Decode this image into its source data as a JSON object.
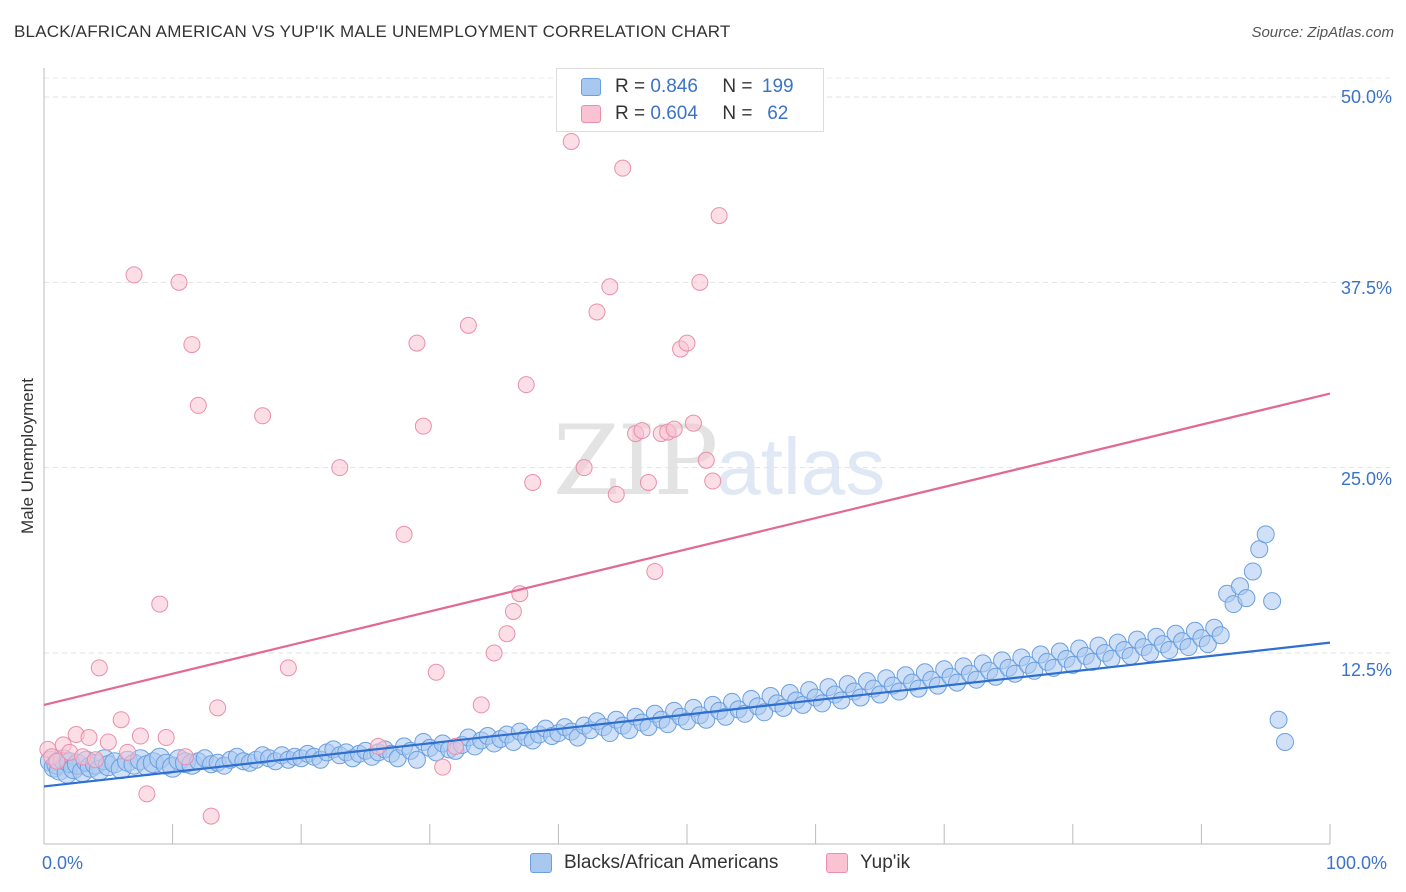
{
  "title": "BLACK/AFRICAN AMERICAN VS YUP'IK MALE UNEMPLOYMENT CORRELATION CHART",
  "source": "Source: ZipAtlas.com",
  "watermark": {
    "zip": "ZIP",
    "atlas": "atlas"
  },
  "legend": [
    {
      "r_label": "R =",
      "r_value": "0.846",
      "n_label": "N =",
      "n_value": "199",
      "color": "#a9c8f0",
      "border": "#6a9fe0"
    },
    {
      "r_label": "R =",
      "r_value": "0.604",
      "n_label": "N =",
      "n_value": "62",
      "color": "#f9c3d3",
      "border": "#ea8fab"
    }
  ],
  "chart_data": {
    "type": "scatter",
    "title": "BLACK/AFRICAN AMERICAN VS YUP'IK MALE UNEMPLOYMENT CORRELATION CHART",
    "xlabel": "",
    "ylabel": "Male Unemployment",
    "xlim": [
      0,
      100
    ],
    "ylim": [
      0,
      52
    ],
    "x_tick_labels": [
      "0.0%",
      "100.0%"
    ],
    "y_ticks": [
      12.5,
      25.0,
      37.5,
      50.0
    ],
    "y_tick_labels": [
      "12.5%",
      "25.0%",
      "37.5%",
      "50.0%"
    ],
    "grid": true,
    "series": [
      {
        "name": "Blacks/African Americans",
        "color": "#a9c8f0",
        "edge": "#6a9fe0",
        "line_color": "#2f6fd0",
        "trend": [
          [
            0,
            3.5
          ],
          [
            100,
            13.2
          ]
        ],
        "points": [
          [
            0.5,
            5.2
          ],
          [
            0.8,
            4.8
          ],
          [
            1,
            5.0
          ],
          [
            1.2,
            4.6
          ],
          [
            1.5,
            5.3
          ],
          [
            1.8,
            4.4
          ],
          [
            2,
            5.1
          ],
          [
            2.3,
            4.7
          ],
          [
            2.6,
            5.0
          ],
          [
            3,
            4.5
          ],
          [
            3.3,
            5.2
          ],
          [
            3.6,
            4.8
          ],
          [
            4,
            5.0
          ],
          [
            4.3,
            4.6
          ],
          [
            4.7,
            5.3
          ],
          [
            5,
            4.9
          ],
          [
            5.5,
            5.1
          ],
          [
            6,
            4.7
          ],
          [
            6.5,
            5.2
          ],
          [
            7,
            5.0
          ],
          [
            7.5,
            5.3
          ],
          [
            8,
            4.9
          ],
          [
            8.5,
            5.1
          ],
          [
            9,
            5.4
          ],
          [
            9.5,
            5.0
          ],
          [
            10,
            4.8
          ],
          [
            10.5,
            5.3
          ],
          [
            11,
            5.1
          ],
          [
            11.5,
            5.0
          ],
          [
            12,
            5.2
          ],
          [
            12.5,
            5.4
          ],
          [
            13,
            5.0
          ],
          [
            13.5,
            5.1
          ],
          [
            14,
            4.9
          ],
          [
            14.5,
            5.3
          ],
          [
            15,
            5.5
          ],
          [
            15.5,
            5.2
          ],
          [
            16,
            5.1
          ],
          [
            16.5,
            5.3
          ],
          [
            17,
            5.6
          ],
          [
            17.5,
            5.4
          ],
          [
            18,
            5.2
          ],
          [
            18.5,
            5.6
          ],
          [
            19,
            5.3
          ],
          [
            19.5,
            5.5
          ],
          [
            20,
            5.4
          ],
          [
            20.5,
            5.7
          ],
          [
            21,
            5.5
          ],
          [
            21.5,
            5.3
          ],
          [
            22,
            5.8
          ],
          [
            22.5,
            6.0
          ],
          [
            23,
            5.6
          ],
          [
            23.5,
            5.8
          ],
          [
            24,
            5.4
          ],
          [
            24.5,
            5.7
          ],
          [
            25,
            5.9
          ],
          [
            25.5,
            5.5
          ],
          [
            26,
            5.8
          ],
          [
            26.5,
            6.0
          ],
          [
            27,
            5.7
          ],
          [
            27.5,
            5.4
          ],
          [
            28,
            6.2
          ],
          [
            28.5,
            5.9
          ],
          [
            29,
            5.3
          ],
          [
            29.5,
            6.5
          ],
          [
            30,
            6.1
          ],
          [
            30.5,
            5.8
          ],
          [
            31,
            6.4
          ],
          [
            31.5,
            6.0
          ],
          [
            32,
            5.9
          ],
          [
            32.5,
            6.3
          ],
          [
            33,
            6.8
          ],
          [
            33.5,
            6.2
          ],
          [
            34,
            6.6
          ],
          [
            34.5,
            6.9
          ],
          [
            35,
            6.4
          ],
          [
            35.5,
            6.7
          ],
          [
            36,
            7.0
          ],
          [
            36.5,
            6.5
          ],
          [
            37,
            7.2
          ],
          [
            37.5,
            6.8
          ],
          [
            38,
            6.6
          ],
          [
            38.5,
            7.0
          ],
          [
            39,
            7.4
          ],
          [
            39.5,
            6.9
          ],
          [
            40,
            7.1
          ],
          [
            40.5,
            7.5
          ],
          [
            41,
            7.2
          ],
          [
            41.5,
            6.8
          ],
          [
            42,
            7.6
          ],
          [
            42.5,
            7.3
          ],
          [
            43,
            7.9
          ],
          [
            43.5,
            7.5
          ],
          [
            44,
            7.1
          ],
          [
            44.5,
            8.0
          ],
          [
            45,
            7.6
          ],
          [
            45.5,
            7.3
          ],
          [
            46,
            8.2
          ],
          [
            46.5,
            7.8
          ],
          [
            47,
            7.5
          ],
          [
            47.5,
            8.4
          ],
          [
            48,
            8.0
          ],
          [
            48.5,
            7.7
          ],
          [
            49,
            8.6
          ],
          [
            49.5,
            8.2
          ],
          [
            50,
            7.9
          ],
          [
            50.5,
            8.8
          ],
          [
            51,
            8.3
          ],
          [
            51.5,
            8.0
          ],
          [
            52,
            9.0
          ],
          [
            52.5,
            8.6
          ],
          [
            53,
            8.2
          ],
          [
            53.5,
            9.2
          ],
          [
            54,
            8.7
          ],
          [
            54.5,
            8.4
          ],
          [
            55,
            9.4
          ],
          [
            55.5,
            8.9
          ],
          [
            56,
            8.5
          ],
          [
            56.5,
            9.6
          ],
          [
            57,
            9.1
          ],
          [
            57.5,
            8.8
          ],
          [
            58,
            9.8
          ],
          [
            58.5,
            9.3
          ],
          [
            59,
            9.0
          ],
          [
            59.5,
            10.0
          ],
          [
            60,
            9.5
          ],
          [
            60.5,
            9.1
          ],
          [
            61,
            10.2
          ],
          [
            61.5,
            9.7
          ],
          [
            62,
            9.3
          ],
          [
            62.5,
            10.4
          ],
          [
            63,
            9.9
          ],
          [
            63.5,
            9.5
          ],
          [
            64,
            10.6
          ],
          [
            64.5,
            10.1
          ],
          [
            65,
            9.7
          ],
          [
            65.5,
            10.8
          ],
          [
            66,
            10.3
          ],
          [
            66.5,
            9.9
          ],
          [
            67,
            11.0
          ],
          [
            67.5,
            10.5
          ],
          [
            68,
            10.1
          ],
          [
            68.5,
            11.2
          ],
          [
            69,
            10.7
          ],
          [
            69.5,
            10.3
          ],
          [
            70,
            11.4
          ],
          [
            70.5,
            10.9
          ],
          [
            71,
            10.5
          ],
          [
            71.5,
            11.6
          ],
          [
            72,
            11.1
          ],
          [
            72.5,
            10.7
          ],
          [
            73,
            11.8
          ],
          [
            73.5,
            11.3
          ],
          [
            74,
            10.9
          ],
          [
            74.5,
            12.0
          ],
          [
            75,
            11.5
          ],
          [
            75.5,
            11.1
          ],
          [
            76,
            12.2
          ],
          [
            76.5,
            11.7
          ],
          [
            77,
            11.3
          ],
          [
            77.5,
            12.4
          ],
          [
            78,
            11.9
          ],
          [
            78.5,
            11.5
          ],
          [
            79,
            12.6
          ],
          [
            79.5,
            12.1
          ],
          [
            80,
            11.7
          ],
          [
            80.5,
            12.8
          ],
          [
            81,
            12.3
          ],
          [
            81.5,
            11.9
          ],
          [
            82,
            13.0
          ],
          [
            82.5,
            12.5
          ],
          [
            83,
            12.1
          ],
          [
            83.5,
            13.2
          ],
          [
            84,
            12.7
          ],
          [
            84.5,
            12.3
          ],
          [
            85,
            13.4
          ],
          [
            85.5,
            12.9
          ],
          [
            86,
            12.5
          ],
          [
            86.5,
            13.6
          ],
          [
            87,
            13.1
          ],
          [
            87.5,
            12.7
          ],
          [
            88,
            13.8
          ],
          [
            88.5,
            13.3
          ],
          [
            89,
            12.9
          ],
          [
            89.5,
            14.0
          ],
          [
            90,
            13.5
          ],
          [
            90.5,
            13.1
          ],
          [
            91,
            14.2
          ],
          [
            91.5,
            13.7
          ],
          [
            92,
            16.5
          ],
          [
            92.5,
            15.8
          ],
          [
            93,
            17.0
          ],
          [
            93.5,
            16.2
          ],
          [
            94,
            18.0
          ],
          [
            94.5,
            19.5
          ],
          [
            95,
            20.5
          ],
          [
            95.5,
            16.0
          ],
          [
            96,
            8.0
          ],
          [
            96.5,
            6.5
          ]
        ]
      },
      {
        "name": "Yup'ik",
        "color": "#f9c3d3",
        "edge": "#ea8fab",
        "line_color": "#e26a92",
        "trend": [
          [
            0,
            9.0
          ],
          [
            100,
            30.0
          ]
        ],
        "points": [
          [
            0.3,
            6.0
          ],
          [
            0.6,
            5.5
          ],
          [
            1,
            5.2
          ],
          [
            1.5,
            6.3
          ],
          [
            2,
            5.8
          ],
          [
            2.5,
            7.0
          ],
          [
            3,
            5.5
          ],
          [
            3.5,
            6.8
          ],
          [
            4,
            5.3
          ],
          [
            4.3,
            11.5
          ],
          [
            5,
            6.5
          ],
          [
            6,
            8.0
          ],
          [
            7,
            38.0
          ],
          [
            7.5,
            6.9
          ],
          [
            8,
            3.0
          ],
          [
            9,
            15.8
          ],
          [
            9.5,
            6.8
          ],
          [
            10.5,
            37.5
          ],
          [
            11,
            5.5
          ],
          [
            11.5,
            33.3
          ],
          [
            12,
            29.2
          ],
          [
            13,
            1.5
          ],
          [
            13.5,
            8.8
          ],
          [
            17,
            28.5
          ],
          [
            19,
            11.5
          ],
          [
            23,
            25.0
          ],
          [
            26,
            6.2
          ],
          [
            28,
            20.5
          ],
          [
            29,
            33.4
          ],
          [
            29.5,
            27.8
          ],
          [
            30.5,
            11.2
          ],
          [
            31,
            4.8
          ],
          [
            32,
            6.2
          ],
          [
            33,
            34.6
          ],
          [
            34,
            9.0
          ],
          [
            35,
            12.5
          ],
          [
            36,
            13.8
          ],
          [
            36.5,
            15.3
          ],
          [
            37,
            16.5
          ],
          [
            37.5,
            30.6
          ],
          [
            38,
            24.0
          ],
          [
            41,
            47.0
          ],
          [
            42,
            25.0
          ],
          [
            43,
            35.5
          ],
          [
            44,
            37.2
          ],
          [
            44.5,
            23.2
          ],
          [
            45,
            45.2
          ],
          [
            46,
            27.3
          ],
          [
            46.5,
            27.5
          ],
          [
            47,
            24.0
          ],
          [
            47.5,
            18.0
          ],
          [
            48,
            27.3
          ],
          [
            48.5,
            27.4
          ],
          [
            49,
            27.6
          ],
          [
            49.5,
            33.0
          ],
          [
            50,
            33.4
          ],
          [
            50.5,
            28.0
          ],
          [
            51,
            37.5
          ],
          [
            51.5,
            25.5
          ],
          [
            52,
            24.1
          ],
          [
            52.5,
            42.0
          ],
          [
            6.5,
            5.8
          ]
        ]
      }
    ]
  },
  "axis": {
    "ylabel": "Male Unemployment",
    "x_left": "0.0%",
    "x_right": "100.0%",
    "y_ticks": [
      "12.5%",
      "25.0%",
      "37.5%",
      "50.0%"
    ]
  },
  "bottom_legend": [
    {
      "label": "Blacks/African Americans",
      "color": "#a9c8f0",
      "border": "#6a9fe0"
    },
    {
      "label": "Yup'ik",
      "color": "#f9c3d3",
      "border": "#ea8fab"
    }
  ]
}
